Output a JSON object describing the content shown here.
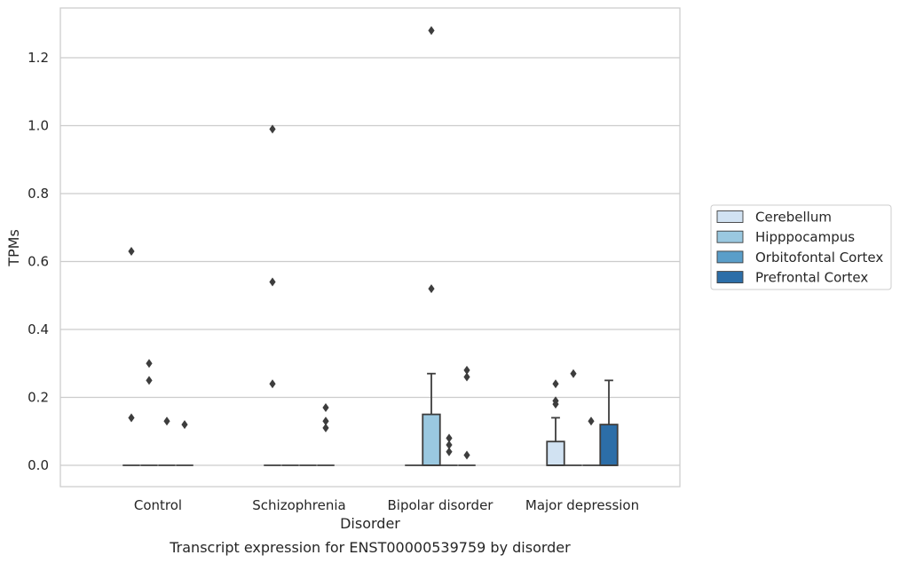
{
  "caption": "Transcript expression for ENST00000539759 by disorder",
  "chart_data": {
    "type": "box",
    "xlabel": "Disorder",
    "ylabel": "TPMs",
    "ylim": [
      -0.062,
      1.35
    ],
    "yticks": [
      0.0,
      0.2,
      0.4,
      0.6,
      0.8,
      1.0,
      1.2
    ],
    "ytick_labels": [
      "0.0",
      "0.2",
      "0.4",
      "0.6",
      "0.8",
      "1.0",
      "1.2"
    ],
    "grid": "horizontal",
    "legend_position": "right",
    "categories": [
      "Control",
      "Schizophrenia",
      "Bipolar disorder",
      "Major depression"
    ],
    "series": [
      {
        "name": "Cerebellum",
        "color": "#d1e2f2",
        "boxes": [
          {
            "q1": 0,
            "median": 0,
            "q3": 0,
            "whisker_low": 0,
            "whisker_high": 0,
            "outliers": [
              0.63,
              0.14
            ]
          },
          {
            "q1": 0,
            "median": 0,
            "q3": 0,
            "whisker_low": 0,
            "whisker_high": 0,
            "outliers": [
              0.99,
              0.54,
              0.24
            ]
          },
          {
            "q1": 0,
            "median": 0,
            "q3": 0,
            "whisker_low": 0,
            "whisker_high": 0,
            "outliers": []
          },
          {
            "q1": 0,
            "median": 0,
            "q3": 0.07,
            "whisker_low": 0,
            "whisker_high": 0.14,
            "outliers": [
              0.24,
              0.19,
              0.18
            ]
          }
        ]
      },
      {
        "name": "Hipppocampus",
        "color": "#9ac8e0",
        "boxes": [
          {
            "q1": 0,
            "median": 0,
            "q3": 0,
            "whisker_low": 0,
            "whisker_high": 0,
            "outliers": [
              0.3,
              0.25
            ]
          },
          {
            "q1": 0,
            "median": 0,
            "q3": 0,
            "whisker_low": 0,
            "whisker_high": 0,
            "outliers": []
          },
          {
            "q1": 0,
            "median": 0,
            "q3": 0.15,
            "whisker_low": 0,
            "whisker_high": 0.27,
            "outliers": [
              1.28,
              0.52
            ]
          },
          {
            "q1": 0,
            "median": 0,
            "q3": 0,
            "whisker_low": 0,
            "whisker_high": 0,
            "outliers": [
              0.27
            ]
          }
        ]
      },
      {
        "name": "Orbitofontal Cortex",
        "color": "#5a9ec9",
        "boxes": [
          {
            "q1": 0,
            "median": 0,
            "q3": 0,
            "whisker_low": 0,
            "whisker_high": 0,
            "outliers": [
              0.13
            ]
          },
          {
            "q1": 0,
            "median": 0,
            "q3": 0,
            "whisker_low": 0,
            "whisker_high": 0,
            "outliers": []
          },
          {
            "q1": 0,
            "median": 0,
            "q3": 0,
            "whisker_low": 0,
            "whisker_high": 0,
            "outliers": [
              0.08,
              0.06,
              0.04
            ]
          },
          {
            "q1": 0,
            "median": 0,
            "q3": 0,
            "whisker_low": 0,
            "whisker_high": 0,
            "outliers": [
              0.13
            ]
          }
        ]
      },
      {
        "name": "Prefrontal Cortex",
        "color": "#2c6ea8",
        "boxes": [
          {
            "q1": 0,
            "median": 0,
            "q3": 0,
            "whisker_low": 0,
            "whisker_high": 0,
            "outliers": [
              0.12
            ]
          },
          {
            "q1": 0,
            "median": 0,
            "q3": 0,
            "whisker_low": 0,
            "whisker_high": 0,
            "outliers": [
              0.17,
              0.13,
              0.11
            ]
          },
          {
            "q1": 0,
            "median": 0,
            "q3": 0,
            "whisker_low": 0,
            "whisker_high": 0,
            "outliers": [
              0.28,
              0.26,
              0.03
            ]
          },
          {
            "q1": 0,
            "median": 0,
            "q3": 0.12,
            "whisker_low": 0,
            "whisker_high": 0.25,
            "outliers": []
          }
        ]
      }
    ]
  }
}
